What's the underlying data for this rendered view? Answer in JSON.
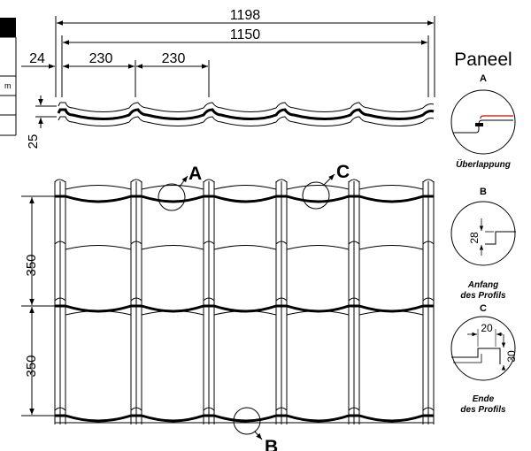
{
  "dimensions": {
    "total_width": "1198",
    "effective_width": "1150",
    "edge_offset": "24",
    "wave_pitch_1": "230",
    "wave_pitch_2": "230",
    "profile_height": "25",
    "step_length_1": "350",
    "step_length_2": "350"
  },
  "callouts": {
    "a": "A",
    "b": "B",
    "c": "C"
  },
  "panel_title": "Paneel",
  "details": {
    "a": {
      "letter": "A",
      "caption": "Überlappung"
    },
    "b": {
      "letter": "B",
      "value": "28",
      "caption_line1": "Anfang",
      "caption_line2": "des Profils"
    },
    "c": {
      "letter": "C",
      "value_width": "20",
      "value_height": "30",
      "caption_line1": "Ende",
      "caption_line2": "des Profils"
    }
  },
  "table_fragment": {
    "unit": "m"
  },
  "colors": {
    "line": "#000000",
    "accent": "#d40000"
  }
}
